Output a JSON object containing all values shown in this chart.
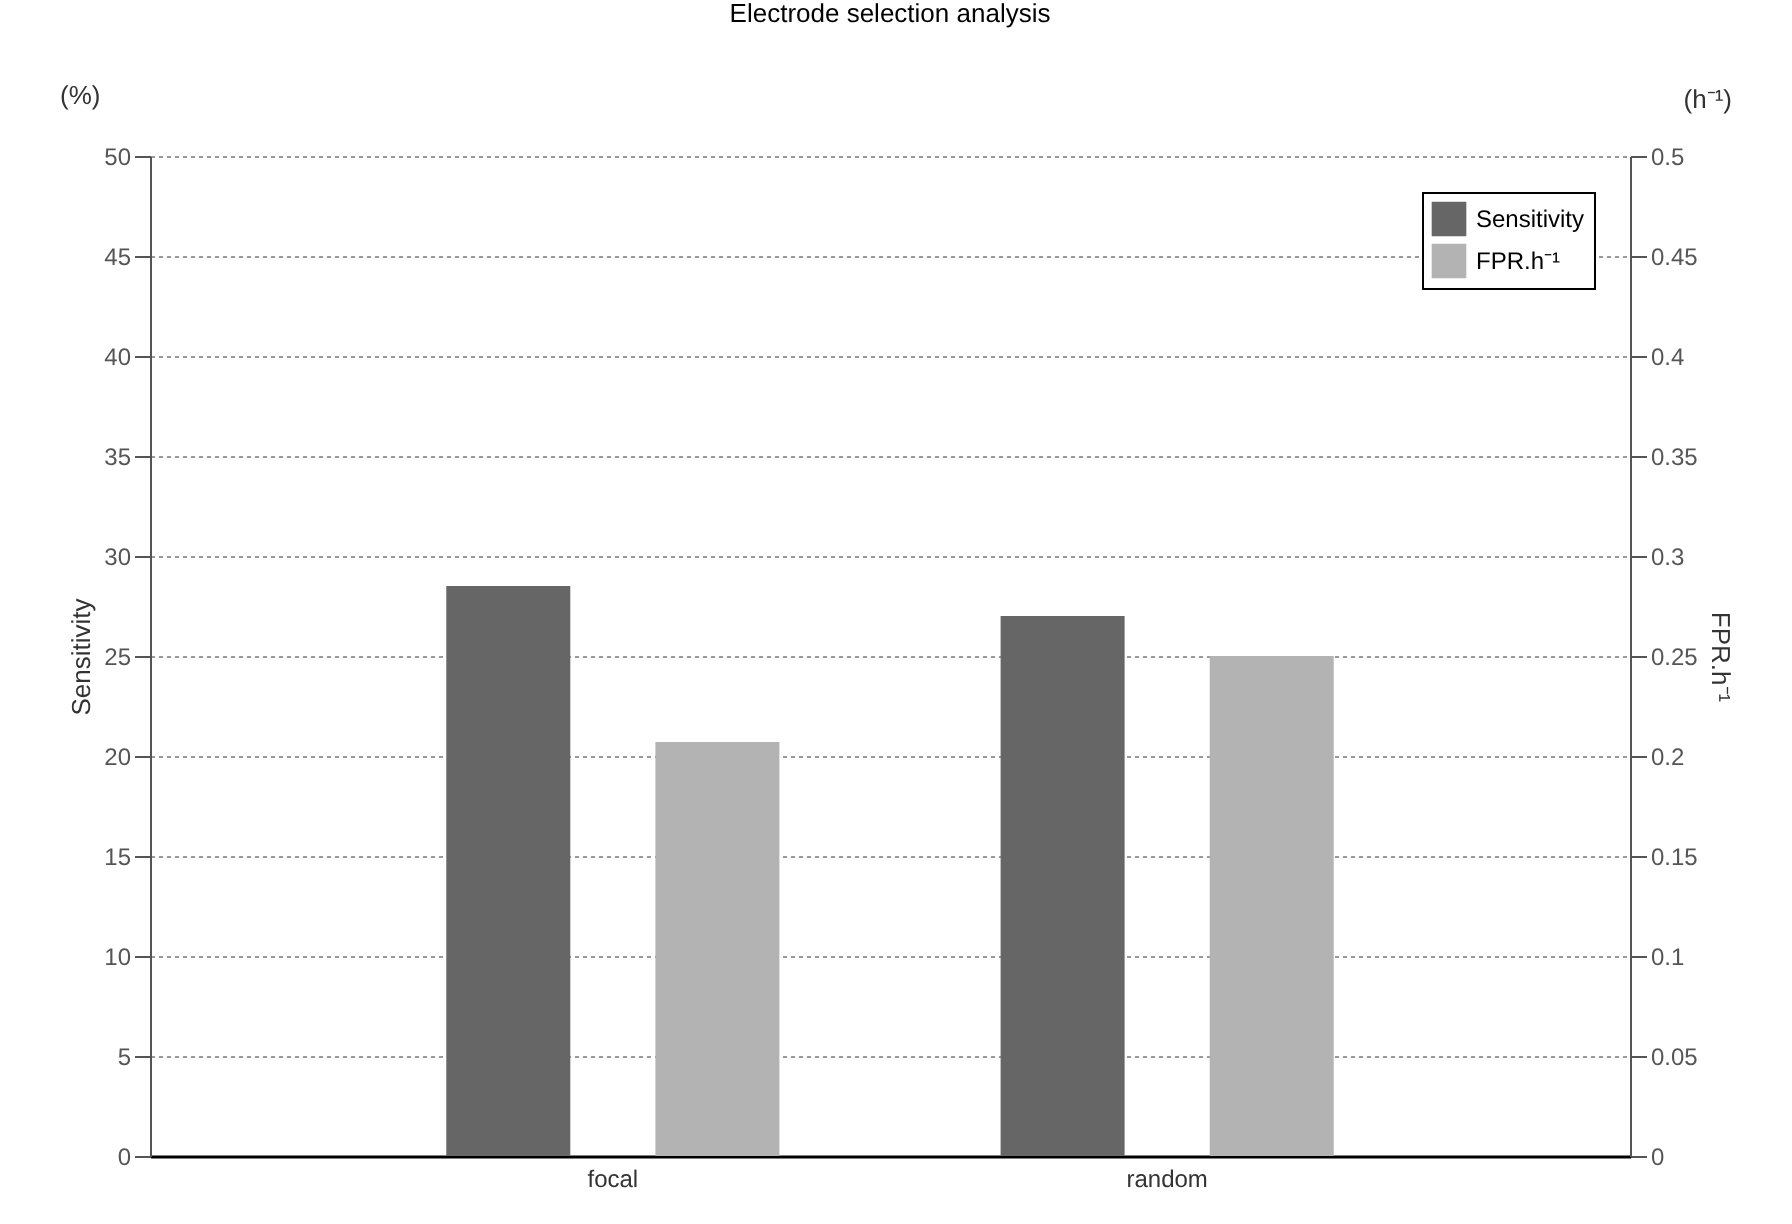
{
  "chart_data": {
    "type": "bar",
    "title": "Electrode selection analysis",
    "ylabel": "Sensitivity",
    "y2label": "FPR.h⁻¹",
    "annotations": [
      "(%)",
      "(h⁻¹)"
    ],
    "categories": [
      "focal",
      "random"
    ],
    "series": [
      {
        "name": "Sensitivity",
        "color": "#666666",
        "values": [
          28.5,
          27
        ]
      },
      {
        "name": "FPR.h⁻¹",
        "color": "#b3b3b3",
        "values": [
          0.207,
          0.25
        ],
        "axis": "y2"
      }
    ],
    "ylim": [
      0,
      50
    ],
    "yticks": [
      0,
      5,
      10,
      15,
      20,
      25,
      30,
      35,
      40,
      45,
      50
    ],
    "y2lim": [
      0,
      0.5
    ],
    "y2ticks": [
      0,
      0.05,
      0.1,
      0.15,
      0.2,
      0.25,
      0.3,
      0.35,
      0.4,
      0.45,
      0.5
    ],
    "grid": true,
    "legend": "top right"
  }
}
